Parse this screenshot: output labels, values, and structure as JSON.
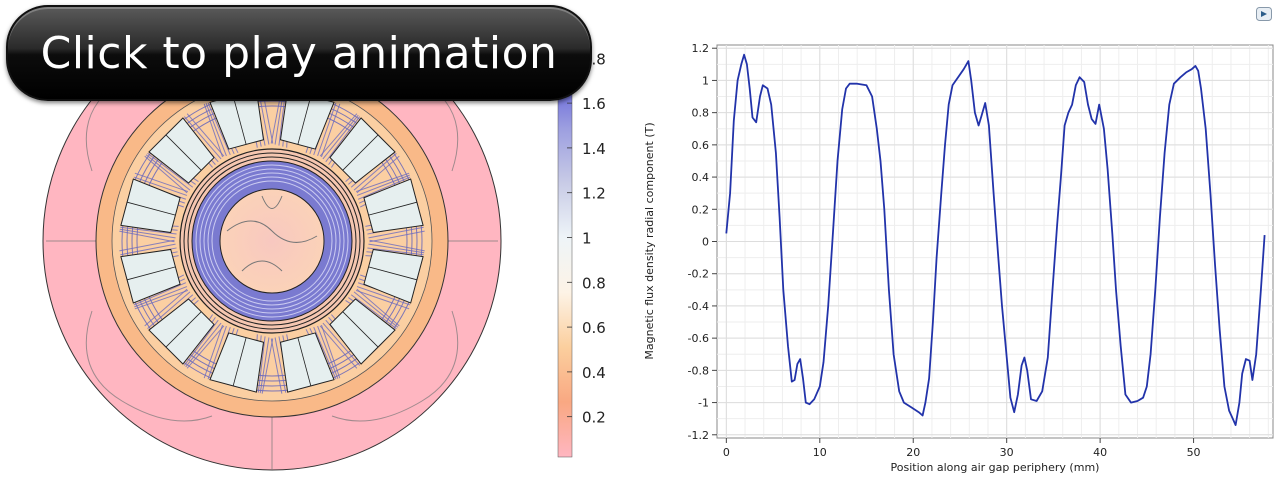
{
  "play_button": {
    "label": "Click to play animation"
  },
  "colorbar": {
    "ticks": [
      "0.2",
      "0.4",
      "0.6",
      "0.8",
      "1",
      "1.2",
      "1.4",
      "1.6",
      "1.8"
    ],
    "tick_values": [
      0.2,
      0.4,
      0.6,
      0.8,
      1.0,
      1.2,
      1.4,
      1.6,
      1.8
    ],
    "range": [
      0.02,
      1.98
    ],
    "colors": [
      "#ffb6c1",
      "#f9a882",
      "#fbcf9e",
      "#fdf3e6",
      "#eef4f8",
      "#c8cbe6",
      "#9c9ee0",
      "#5a5ad8",
      "#1a1ae0"
    ]
  },
  "chart_data": {
    "type": "line",
    "xlabel": "Position along air gap periphery (mm)",
    "ylabel": "Magnetic flux density radial component (T)",
    "xlim": [
      -1,
      58.5
    ],
    "ylim": [
      -1.22,
      1.22
    ],
    "xticks": [
      0,
      10,
      20,
      30,
      40,
      50
    ],
    "yticks": [
      -1.2,
      -1,
      -0.8,
      -0.6,
      -0.4,
      -0.2,
      0,
      0.2,
      0.4,
      0.6,
      0.8,
      1,
      1.2
    ],
    "grid": true,
    "line_color": "#2233aa",
    "series": [
      {
        "values": [
          [
            0,
            0.05
          ],
          [
            0.4,
            0.3
          ],
          [
            0.8,
            0.75
          ],
          [
            1.2,
            1.0
          ],
          [
            1.6,
            1.1
          ],
          [
            1.9,
            1.16
          ],
          [
            2.2,
            1.1
          ],
          [
            2.5,
            0.95
          ],
          [
            2.8,
            0.77
          ],
          [
            3.2,
            0.74
          ],
          [
            3.6,
            0.9
          ],
          [
            3.9,
            0.97
          ],
          [
            4.4,
            0.95
          ],
          [
            4.8,
            0.85
          ],
          [
            5.3,
            0.55
          ],
          [
            5.7,
            0.15
          ],
          [
            6.1,
            -0.3
          ],
          [
            6.6,
            -0.65
          ],
          [
            7.0,
            -0.87
          ],
          [
            7.3,
            -0.86
          ],
          [
            7.6,
            -0.76
          ],
          [
            7.9,
            -0.73
          ],
          [
            8.2,
            -0.85
          ],
          [
            8.5,
            -1.0
          ],
          [
            8.9,
            -1.01
          ],
          [
            9.4,
            -0.98
          ],
          [
            10.0,
            -0.9
          ],
          [
            10.4,
            -0.75
          ],
          [
            10.9,
            -0.4
          ],
          [
            11.4,
            0.05
          ],
          [
            11.9,
            0.5
          ],
          [
            12.4,
            0.82
          ],
          [
            12.8,
            0.95
          ],
          [
            13.2,
            0.98
          ],
          [
            14,
            0.98
          ],
          [
            15,
            0.97
          ],
          [
            15.6,
            0.9
          ],
          [
            16.1,
            0.7
          ],
          [
            16.5,
            0.5
          ],
          [
            16.9,
            0.2
          ],
          [
            17.4,
            -0.3
          ],
          [
            17.9,
            -0.7
          ],
          [
            18.5,
            -0.93
          ],
          [
            19,
            -1.0
          ],
          [
            19.8,
            -1.03
          ],
          [
            20.6,
            -1.06
          ],
          [
            21.0,
            -1.08
          ],
          [
            21.3,
            -1.0
          ],
          [
            21.7,
            -0.85
          ],
          [
            22.1,
            -0.5
          ],
          [
            22.5,
            -0.1
          ],
          [
            23,
            0.3
          ],
          [
            23.4,
            0.6
          ],
          [
            23.8,
            0.85
          ],
          [
            24.2,
            0.97
          ],
          [
            24.8,
            1.02
          ],
          [
            25.4,
            1.07
          ],
          [
            25.9,
            1.12
          ],
          [
            26.2,
            1.0
          ],
          [
            26.6,
            0.8
          ],
          [
            27,
            0.72
          ],
          [
            27.3,
            0.78
          ],
          [
            27.7,
            0.86
          ],
          [
            28.1,
            0.72
          ],
          [
            28.6,
            0.3
          ],
          [
            29.1,
            -0.1
          ],
          [
            29.5,
            -0.4
          ],
          [
            29.9,
            -0.65
          ],
          [
            30.4,
            -0.97
          ],
          [
            30.8,
            -1.06
          ],
          [
            31.2,
            -0.95
          ],
          [
            31.6,
            -0.77
          ],
          [
            31.9,
            -0.72
          ],
          [
            32.2,
            -0.8
          ],
          [
            32.6,
            -0.98
          ],
          [
            33.2,
            -0.99
          ],
          [
            33.8,
            -0.93
          ],
          [
            34.4,
            -0.72
          ],
          [
            34.9,
            -0.3
          ],
          [
            35.4,
            0.1
          ],
          [
            35.8,
            0.4
          ],
          [
            36.2,
            0.72
          ],
          [
            36.6,
            0.8
          ],
          [
            37.0,
            0.85
          ],
          [
            37.4,
            0.97
          ],
          [
            37.8,
            1.02
          ],
          [
            38.3,
            0.99
          ],
          [
            38.7,
            0.85
          ],
          [
            39.1,
            0.76
          ],
          [
            39.5,
            0.73
          ],
          [
            39.9,
            0.85
          ],
          [
            40.4,
            0.7
          ],
          [
            40.8,
            0.45
          ],
          [
            41.3,
            0.05
          ],
          [
            41.7,
            -0.3
          ],
          [
            42.2,
            -0.65
          ],
          [
            42.7,
            -0.95
          ],
          [
            43.3,
            -1.0
          ],
          [
            44,
            -0.99
          ],
          [
            44.6,
            -0.97
          ],
          [
            45.0,
            -0.9
          ],
          [
            45.4,
            -0.7
          ],
          [
            45.9,
            -0.3
          ],
          [
            46.4,
            0.15
          ],
          [
            46.9,
            0.55
          ],
          [
            47.4,
            0.85
          ],
          [
            47.9,
            0.98
          ],
          [
            48.6,
            1.02
          ],
          [
            49.2,
            1.05
          ],
          [
            49.8,
            1.07
          ],
          [
            50.2,
            1.09
          ],
          [
            50.5,
            1.06
          ],
          [
            50.8,
            0.95
          ],
          [
            51.3,
            0.7
          ],
          [
            51.8,
            0.3
          ],
          [
            52.3,
            -0.15
          ],
          [
            52.8,
            -0.55
          ],
          [
            53.3,
            -0.9
          ],
          [
            53.8,
            -1.05
          ],
          [
            54.2,
            -1.1
          ],
          [
            54.5,
            -1.14
          ],
          [
            54.9,
            -1.0
          ],
          [
            55.2,
            -0.82
          ],
          [
            55.6,
            -0.73
          ],
          [
            56,
            -0.74
          ],
          [
            56.3,
            -0.86
          ],
          [
            56.7,
            -0.7
          ],
          [
            57.2,
            -0.3
          ],
          [
            57.6,
            0.04
          ]
        ]
      }
    ]
  }
}
